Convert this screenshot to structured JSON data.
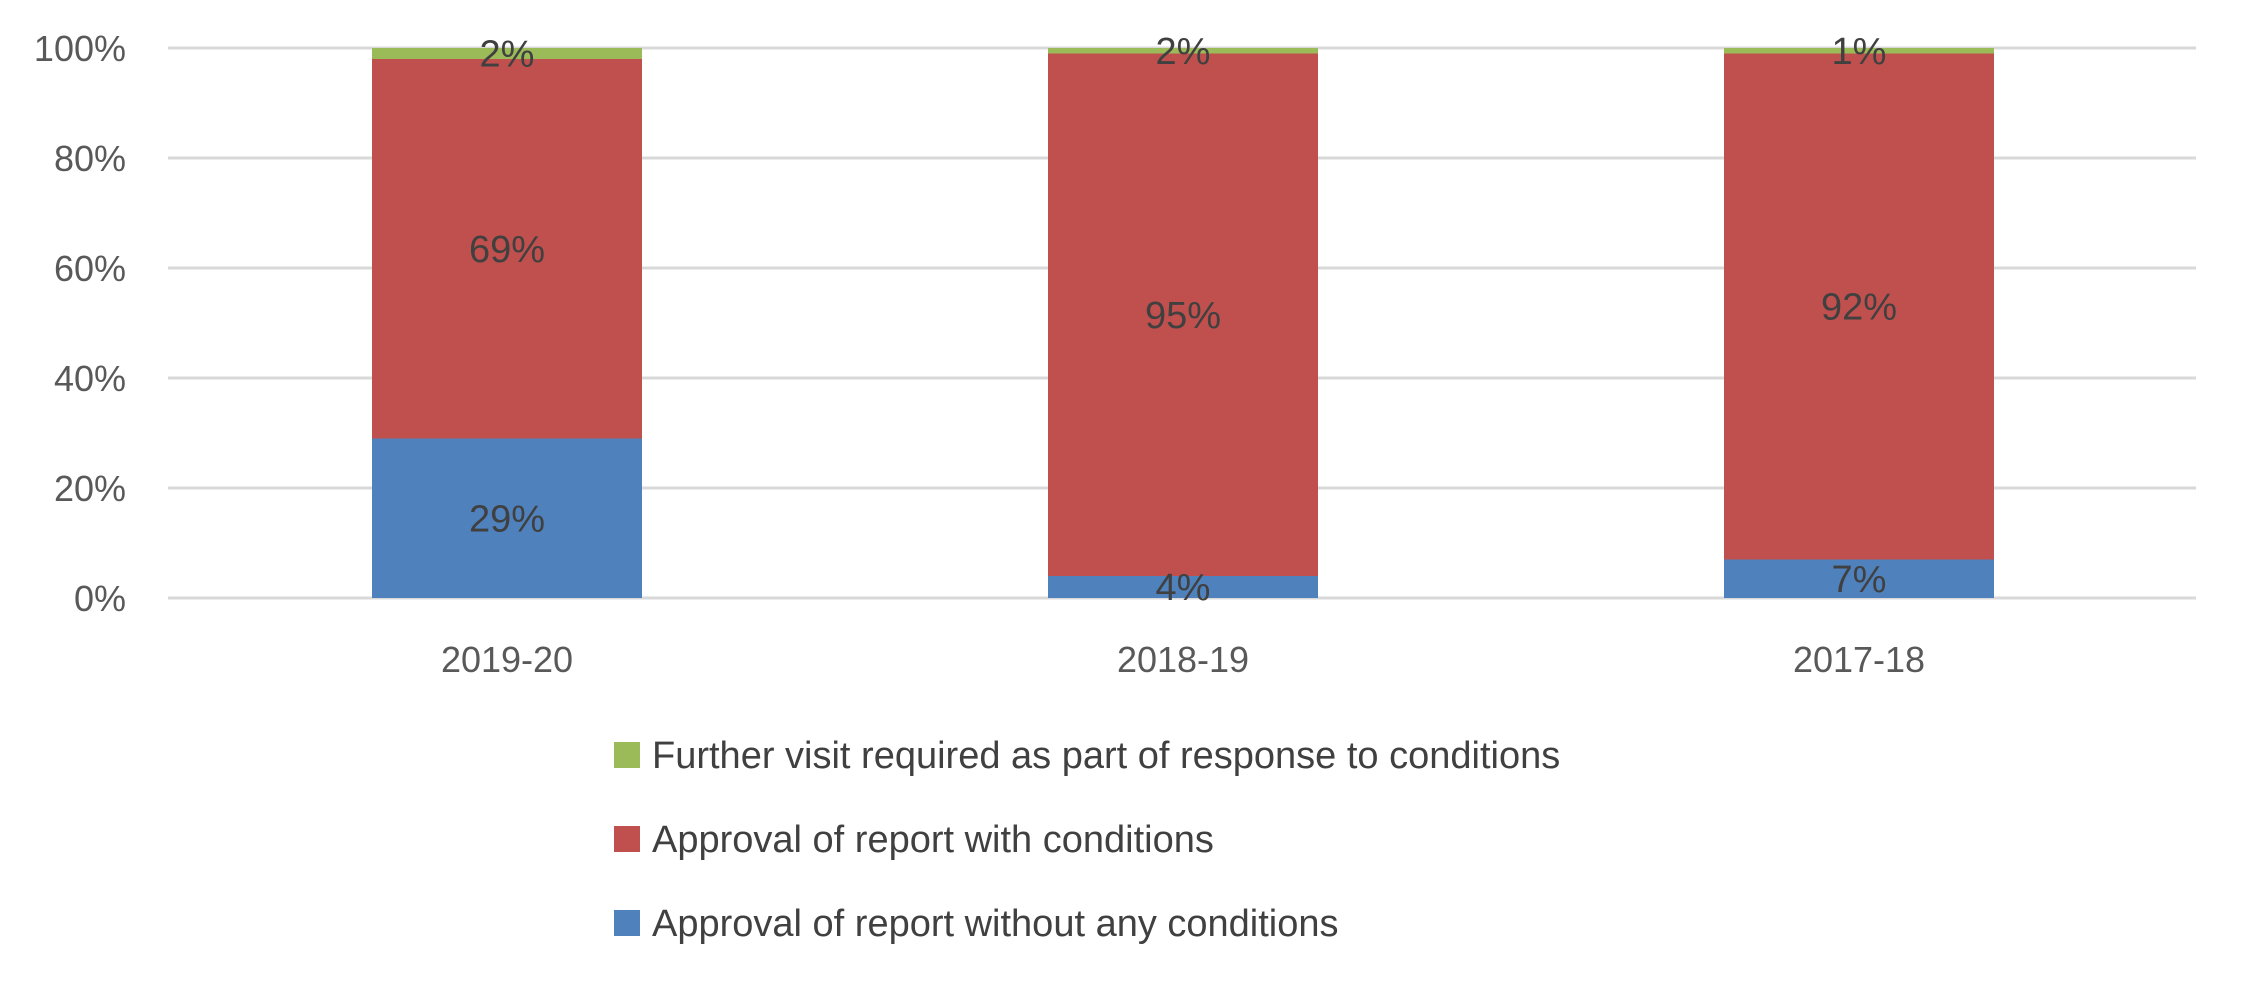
{
  "chart_data": {
    "type": "bar",
    "stacked": true,
    "categories": [
      "2019-20",
      "2018-19",
      "2017-18"
    ],
    "series": [
      {
        "name": "Approval of report without any conditions",
        "color": "#4f81bd",
        "values": [
          29,
          4,
          7
        ],
        "labels": [
          "29%",
          "4%",
          "7%"
        ]
      },
      {
        "name": "Approval of report with conditions",
        "color": "#c0504d",
        "values": [
          69,
          95,
          92
        ],
        "labels": [
          "69%",
          "95%",
          "92%"
        ]
      },
      {
        "name": "Further visit required as part of response to conditions",
        "color": "#9bbb59",
        "values": [
          2,
          2,
          1
        ],
        "labels": [
          "2%",
          "2%",
          "1%"
        ]
      }
    ],
    "ylim": [
      0,
      100
    ],
    "yticks": [
      "0%",
      "20%",
      "40%",
      "60%",
      "80%",
      "100%"
    ],
    "grid": true,
    "legend_position": "bottom",
    "legend_order": [
      2,
      1,
      0
    ]
  }
}
